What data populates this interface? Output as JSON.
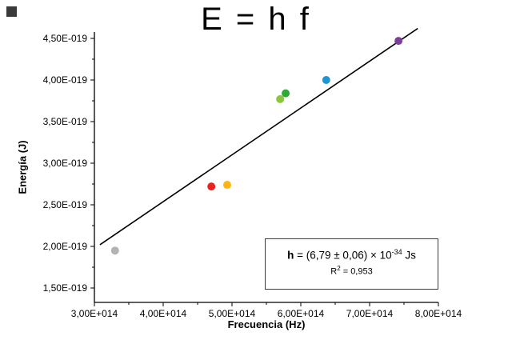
{
  "chart_data": {
    "type": "scatter",
    "title": "E = h f",
    "xlabel": "Frecuencia (Hz)",
    "ylabel": "Energía (J)",
    "xlim": [
      300000000000000.0,
      800000000000000.0
    ],
    "ylim": [
      1.327e-19,
      4.577e-19
    ],
    "grid": false,
    "legend": "none",
    "axis_color": "#000000",
    "x_ticks": {
      "values": [
        300000000000000.0,
        400000000000000.0,
        500000000000000.0,
        600000000000000.0,
        700000000000000.0,
        800000000000000.0
      ],
      "labels": [
        "3,00E+014",
        "4,00E+014",
        "5,00E+014",
        "6,00E+014",
        "7,00E+014",
        "8,00E+014"
      ],
      "minor": [
        350000000000000.0,
        450000000000000.0,
        550000000000000.0,
        650000000000000.0,
        750000000000000.0
      ]
    },
    "y_ticks": {
      "values": [
        1.5e-19,
        2e-19,
        2.5e-19,
        3e-19,
        3.5e-19,
        4e-19,
        4.5e-19
      ],
      "labels": [
        "1,50E-019",
        "2,00E-019",
        "2,50E-019",
        "3,00E-019",
        "3,50E-019",
        "4,00E-019",
        "4,50E-019"
      ],
      "minor": [
        1.75e-19,
        2.25e-19,
        2.75e-19,
        3.25e-19,
        3.75e-19,
        4.25e-19
      ]
    },
    "points": [
      {
        "name": "gray",
        "f": 330000000000000.0,
        "E": 1.95e-19,
        "color": "#b3b3b3"
      },
      {
        "name": "red",
        "f": 470000000000000.0,
        "E": 2.72e-19,
        "color": "#e8231f"
      },
      {
        "name": "orange",
        "f": 493000000000000.0,
        "E": 2.74e-19,
        "color": "#ffb612"
      },
      {
        "name": "light-green",
        "f": 570000000000000.0,
        "E": 3.77e-19,
        "color": "#8cc63f"
      },
      {
        "name": "green",
        "f": 578000000000000.0,
        "E": 3.84e-19,
        "color": "#2ea836"
      },
      {
        "name": "blue",
        "f": 637000000000000.0,
        "E": 4e-19,
        "color": "#2095d3"
      },
      {
        "name": "violet",
        "f": 742000000000000.0,
        "E": 4.47e-19,
        "color": "#7b3f9b"
      }
    ],
    "fit_line": {
      "f1": 308000000000000.0,
      "E1": 2.02e-19,
      "f2": 770000000000000.0,
      "E2": 4.62e-19,
      "color": "#000000",
      "width": 1.6
    },
    "annotation": {
      "h_symbol": "h",
      "eq": " =  ",
      "value": "(6,79 ± 0,06) × 10",
      "exponent": "-34",
      "unit": " Js",
      "r_symbol": "R",
      "r_exponent": "2",
      "r_value": " =  0,953"
    }
  },
  "corner_marker": {
    "color": "#3a3a3a"
  }
}
